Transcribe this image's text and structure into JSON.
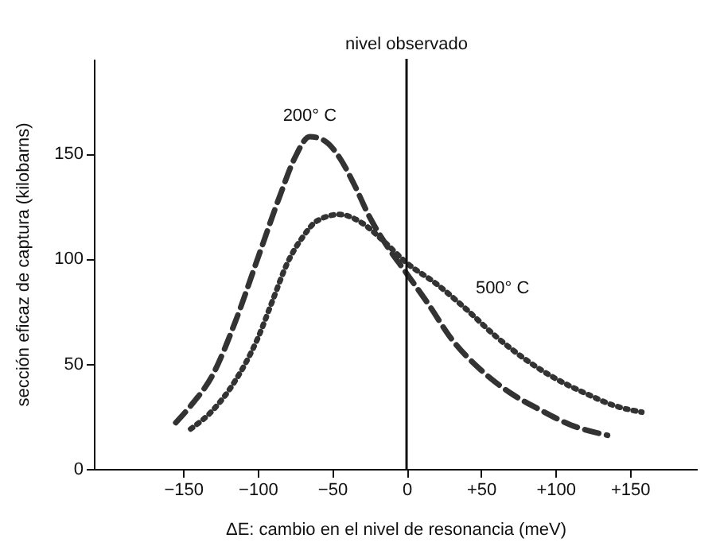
{
  "chart_data": {
    "type": "line",
    "xlabel": "ΔE: cambio en el nivel de resonancia (meV)",
    "ylabel": "sección eficaz de captura (kilobarns)",
    "xlim": [
      -210,
      195
    ],
    "ylim": [
      0,
      195
    ],
    "xticks": [
      {
        "value": -150,
        "label": "−150"
      },
      {
        "value": -100,
        "label": "−100"
      },
      {
        "value": -50,
        "label": "−50"
      },
      0,
      {
        "value": 50,
        "label": "+50"
      },
      {
        "value": 100,
        "label": "+100"
      },
      {
        "value": 150,
        "label": "+150"
      }
    ],
    "yticks": [
      0,
      50,
      100,
      150
    ],
    "grid": false,
    "legend": false,
    "series": [
      {
        "name": "200° C",
        "color": "#333333",
        "line_style": "dashed",
        "x": [
          -155,
          -145,
          -130,
          -115,
          -100,
          -85,
          -75,
          -65,
          -55,
          -45,
          -35,
          -25,
          -15,
          0,
          15,
          30,
          50,
          70,
          90,
          110,
          135
        ],
        "values": [
          22,
          30,
          45,
          70,
          100,
          130,
          148,
          158,
          156,
          148,
          135,
          120,
          108,
          93,
          78,
          62,
          47,
          36,
          28,
          21,
          16
        ]
      },
      {
        "name": "500° C",
        "color": "#333333",
        "line_style": "dotted",
        "x": [
          -145,
          -130,
          -115,
          -100,
          -90,
          -80,
          -70,
          -60,
          -45,
          -30,
          -15,
          0,
          20,
          40,
          60,
          80,
          100,
          120,
          140,
          158
        ],
        "values": [
          19,
          28,
          42,
          62,
          80,
          98,
          110,
          118,
          121,
          117,
          108,
          98,
          88,
          76,
          63,
          52,
          43,
          36,
          30,
          27
        ]
      }
    ],
    "ref_lines": [
      {
        "axis": "x",
        "value": 0,
        "label": "nivel observado",
        "color": "#111111"
      }
    ]
  }
}
